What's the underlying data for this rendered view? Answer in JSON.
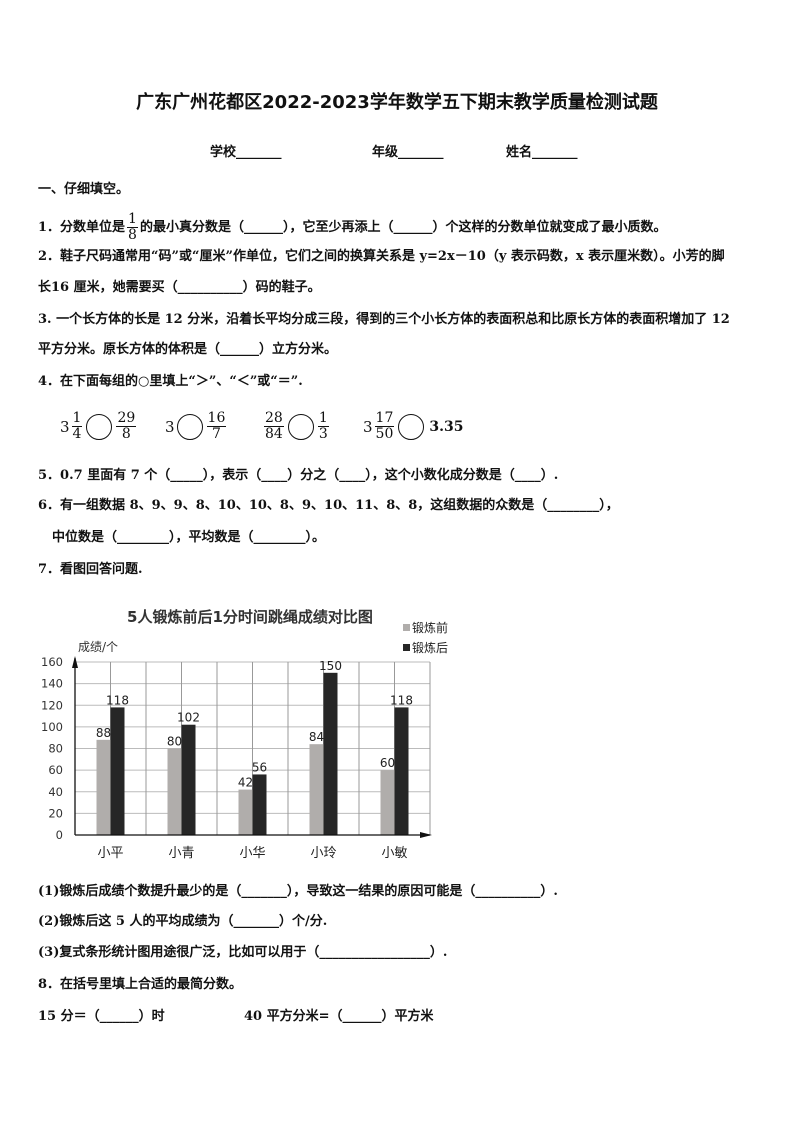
{
  "title": "广东广州花都区2022-2023学年数学五下期末教学质量检测试题",
  "info": {
    "school": "学校_______",
    "grade": "年级_______",
    "name": "姓名_______"
  },
  "section1": "一、仔细填空。",
  "q1": {
    "a": "1．分数单位是",
    "num": "1",
    "den": "8",
    "b": "的最小真分数是（______），它至少再添上（______）个这样的分数单位就变成了最小质数。"
  },
  "q2": {
    "line1": "2．鞋子尺码通常用“码”或“厘米”作单位，它们之间的换算关系是 y=2x－10（y 表示码数，x 表示厘米数）。小芳的脚",
    "line2": "长16 厘米，她需要买（__________）码的鞋子。"
  },
  "q3": {
    "line1": "3. 一个长方体的长是 12 分米，沿着长平均分成三段，得到的三个小长方体的表面积总和比原长方体的表面积增加了 12",
    "line2": "平方分米。原长方体的体积是（______）立方分米。"
  },
  "q4": {
    "text": "4．在下面每组的○里填上“＞”、“＜”或“＝”.",
    "items": [
      {
        "lw": "3",
        "ln": "1",
        "ld": "4",
        "rw": "",
        "rn": "29",
        "rd": "8",
        "rv": ""
      },
      {
        "lw": "3",
        "ln": "",
        "ld": "",
        "rw": "",
        "rn": "16",
        "rd": "7",
        "rv": ""
      },
      {
        "lw": "",
        "ln": "28",
        "ld": "84",
        "rw": "",
        "rn": "1",
        "rd": "3",
        "rv": ""
      },
      {
        "lw": "3",
        "ln": "17",
        "ld": "50",
        "rw": "",
        "rn": "",
        "rd": "",
        "rv": "3.35"
      }
    ]
  },
  "q5": "5．0.7 里面有 7 个（_____），表示（____）分之（____），这个小数化成分数是（____）.",
  "q6": {
    "line1": "6．有一组数据 8、9、9、8、10、10、8、9、10、11、8、8，这组数据的众数是（________），",
    "line2": "中位数是（________），平均数是（________）。"
  },
  "q7": "7．看图回答问题.",
  "chart_data": {
    "type": "bar",
    "title": "5人锻炼前后1分时间跳绳成绩对比图",
    "ylabel": "成绩/个",
    "xlabel": "",
    "categories": [
      "小平",
      "小青",
      "小华",
      "小玲",
      "小敏"
    ],
    "series": [
      {
        "name": "锻炼前",
        "values": [
          88,
          80,
          42,
          84,
          60
        ],
        "color": "#b0adab"
      },
      {
        "name": "锻炼后",
        "values": [
          118,
          102,
          56,
          150,
          118
        ],
        "color": "#262626"
      }
    ],
    "ylim": [
      0,
      160
    ],
    "yticks": [
      0,
      20,
      40,
      60,
      80,
      100,
      120,
      140,
      160
    ],
    "grid": true,
    "legend": "top-right",
    "data_labels": true
  },
  "q7sub": [
    "(1)锻炼后成绩个数提升最少的是（_______），导致这一结果的原因可能是（__________）.",
    "(2)锻炼后这 5 人的平均成绩为（_______）个/分.",
    "(3)复式条形统计图用途很广泛，比如可以用于（_________________）."
  ],
  "q8": {
    "text": "8．在括号里填上合适的最简分数。",
    "a": "15 分＝（______）时",
    "b": "40 平方分米=（______）平方米"
  }
}
